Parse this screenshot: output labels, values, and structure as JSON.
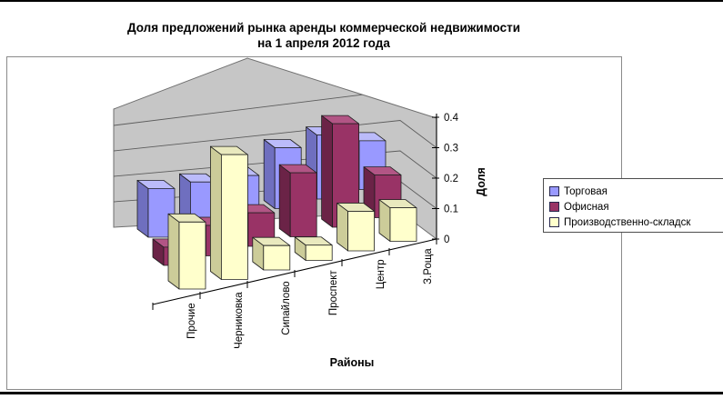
{
  "title": {
    "line1": "Доля предложений рынка аренды коммерческой недвижимости",
    "line2": "на 1 апреля 2012 года"
  },
  "chart_data": {
    "type": "bar",
    "subtype": "3d-column",
    "categories": [
      "Прочие",
      "Черниковка",
      "Сипайлово",
      "Проспект",
      "Центр",
      "З.Роща"
    ],
    "series": [
      {
        "name": "Торговая",
        "color": "#9999FF",
        "top_color": "#BBBBFA",
        "side_color": "#6F6FBF",
        "values": [
          0.16,
          0.15,
          0.14,
          0.2,
          0.21,
          0.16
        ]
      },
      {
        "name": "Офисная",
        "color": "#993366",
        "top_color": "#B25585",
        "side_color": "#6B2347",
        "values": [
          0.06,
          0.1,
          0.11,
          0.21,
          0.34,
          0.14
        ]
      },
      {
        "name": "Производственно-складск",
        "color": "#FFFFCC",
        "top_color": "#E9E9BE",
        "side_color": "#CCCC99",
        "values": [
          0.22,
          0.41,
          0.08,
          0.05,
          0.13,
          0.11
        ]
      }
    ],
    "value_axis": {
      "title": "Доля",
      "ticks": [
        "0",
        "0.1",
        "0.2",
        "0.3",
        "0.4"
      ],
      "min": 0,
      "max": 0.4,
      "grid": true
    },
    "category_axis": {
      "title": "Районы"
    },
    "legend_position": "right",
    "wall_color": "#C6C6C6"
  },
  "legend": {
    "items": [
      {
        "label": "Торговая",
        "color": "#9999FF"
      },
      {
        "label": "Офисная",
        "color": "#993366"
      },
      {
        "label": "Производственно-складск",
        "color": "#FFFFCC"
      }
    ]
  }
}
